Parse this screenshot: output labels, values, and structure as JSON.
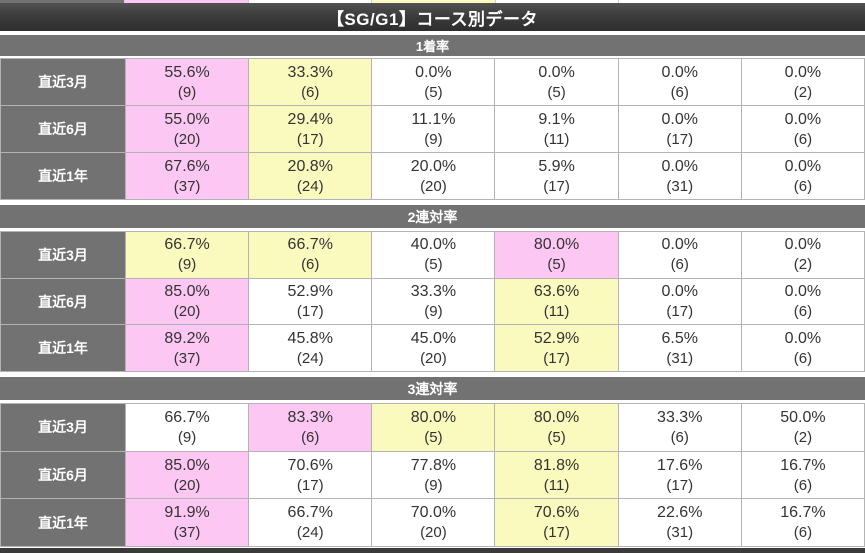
{
  "title": "【SG/G1】コース別データ",
  "colors": {
    "highlight_pink": "#fcc7f3",
    "highlight_yellow": "#fafabe",
    "header_gray": "#727272",
    "title_bar_dark": "#3a3a3a",
    "plain_white": "#ffffff"
  },
  "top_partial_row": {
    "cells": [
      "label",
      "pink",
      "plain",
      "yellow",
      "plain",
      "plain"
    ]
  },
  "sections": [
    {
      "header": "1着率",
      "rows": [
        {
          "label": "直近3月",
          "cells": [
            {
              "pct": "55.6%",
              "n": "(9)",
              "hl": "pink"
            },
            {
              "pct": "33.3%",
              "n": "(6)",
              "hl": "yellow"
            },
            {
              "pct": "0.0%",
              "n": "(5)",
              "hl": "none"
            },
            {
              "pct": "0.0%",
              "n": "(5)",
              "hl": "none"
            },
            {
              "pct": "0.0%",
              "n": "(6)",
              "hl": "none"
            },
            {
              "pct": "0.0%",
              "n": "(2)",
              "hl": "none"
            }
          ]
        },
        {
          "label": "直近6月",
          "cells": [
            {
              "pct": "55.0%",
              "n": "(20)",
              "hl": "pink"
            },
            {
              "pct": "29.4%",
              "n": "(17)",
              "hl": "yellow"
            },
            {
              "pct": "11.1%",
              "n": "(9)",
              "hl": "none"
            },
            {
              "pct": "9.1%",
              "n": "(11)",
              "hl": "none"
            },
            {
              "pct": "0.0%",
              "n": "(17)",
              "hl": "none"
            },
            {
              "pct": "0.0%",
              "n": "(6)",
              "hl": "none"
            }
          ]
        },
        {
          "label": "直近1年",
          "cells": [
            {
              "pct": "67.6%",
              "n": "(37)",
              "hl": "pink"
            },
            {
              "pct": "20.8%",
              "n": "(24)",
              "hl": "yellow"
            },
            {
              "pct": "20.0%",
              "n": "(20)",
              "hl": "none"
            },
            {
              "pct": "5.9%",
              "n": "(17)",
              "hl": "none"
            },
            {
              "pct": "0.0%",
              "n": "(31)",
              "hl": "none"
            },
            {
              "pct": "0.0%",
              "n": "(6)",
              "hl": "none"
            }
          ]
        }
      ]
    },
    {
      "header": "2連対率",
      "rows": [
        {
          "label": "直近3月",
          "cells": [
            {
              "pct": "66.7%",
              "n": "(9)",
              "hl": "yellow"
            },
            {
              "pct": "66.7%",
              "n": "(6)",
              "hl": "yellow"
            },
            {
              "pct": "40.0%",
              "n": "(5)",
              "hl": "none"
            },
            {
              "pct": "80.0%",
              "n": "(5)",
              "hl": "pink"
            },
            {
              "pct": "0.0%",
              "n": "(6)",
              "hl": "none"
            },
            {
              "pct": "0.0%",
              "n": "(2)",
              "hl": "none"
            }
          ]
        },
        {
          "label": "直近6月",
          "cells": [
            {
              "pct": "85.0%",
              "n": "(20)",
              "hl": "pink"
            },
            {
              "pct": "52.9%",
              "n": "(17)",
              "hl": "none"
            },
            {
              "pct": "33.3%",
              "n": "(9)",
              "hl": "none"
            },
            {
              "pct": "63.6%",
              "n": "(11)",
              "hl": "yellow"
            },
            {
              "pct": "0.0%",
              "n": "(17)",
              "hl": "none"
            },
            {
              "pct": "0.0%",
              "n": "(6)",
              "hl": "none"
            }
          ]
        },
        {
          "label": "直近1年",
          "cells": [
            {
              "pct": "89.2%",
              "n": "(37)",
              "hl": "pink"
            },
            {
              "pct": "45.8%",
              "n": "(24)",
              "hl": "none"
            },
            {
              "pct": "45.0%",
              "n": "(20)",
              "hl": "none"
            },
            {
              "pct": "52.9%",
              "n": "(17)",
              "hl": "yellow"
            },
            {
              "pct": "6.5%",
              "n": "(31)",
              "hl": "none"
            },
            {
              "pct": "0.0%",
              "n": "(6)",
              "hl": "none"
            }
          ]
        }
      ]
    },
    {
      "header": "3連対率",
      "rows": [
        {
          "label": "直近3月",
          "cells": [
            {
              "pct": "66.7%",
              "n": "(9)",
              "hl": "none"
            },
            {
              "pct": "83.3%",
              "n": "(6)",
              "hl": "pink"
            },
            {
              "pct": "80.0%",
              "n": "(5)",
              "hl": "yellow"
            },
            {
              "pct": "80.0%",
              "n": "(5)",
              "hl": "yellow"
            },
            {
              "pct": "33.3%",
              "n": "(6)",
              "hl": "none"
            },
            {
              "pct": "50.0%",
              "n": "(2)",
              "hl": "none"
            }
          ]
        },
        {
          "label": "直近6月",
          "cells": [
            {
              "pct": "85.0%",
              "n": "(20)",
              "hl": "pink"
            },
            {
              "pct": "70.6%",
              "n": "(17)",
              "hl": "none"
            },
            {
              "pct": "77.8%",
              "n": "(9)",
              "hl": "none"
            },
            {
              "pct": "81.8%",
              "n": "(11)",
              "hl": "yellow"
            },
            {
              "pct": "17.6%",
              "n": "(17)",
              "hl": "none"
            },
            {
              "pct": "16.7%",
              "n": "(6)",
              "hl": "none"
            }
          ]
        },
        {
          "label": "直近1年",
          "cells": [
            {
              "pct": "91.9%",
              "n": "(37)",
              "hl": "pink"
            },
            {
              "pct": "66.7%",
              "n": "(24)",
              "hl": "none"
            },
            {
              "pct": "70.0%",
              "n": "(20)",
              "hl": "none"
            },
            {
              "pct": "70.6%",
              "n": "(17)",
              "hl": "yellow"
            },
            {
              "pct": "22.6%",
              "n": "(31)",
              "hl": "none"
            },
            {
              "pct": "16.7%",
              "n": "(6)",
              "hl": "none"
            }
          ]
        }
      ]
    }
  ]
}
